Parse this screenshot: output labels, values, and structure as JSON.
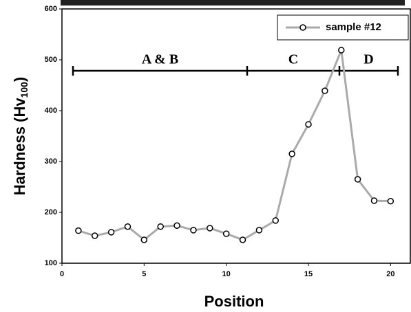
{
  "chart_data": {
    "type": "line",
    "x_label": "Position",
    "y_label": {
      "text": "Hardness (Hv",
      "sub": "100",
      "end": ")"
    },
    "x": [
      1,
      2,
      3,
      4,
      5,
      6,
      7,
      8,
      9,
      10,
      11,
      12,
      13,
      14,
      15,
      16,
      17,
      18,
      19,
      20
    ],
    "series": [
      {
        "name": "sample #12",
        "color": "#aaaaaa",
        "values": [
          164,
          154,
          161,
          172,
          146,
          172,
          174,
          165,
          169,
          158,
          146,
          165,
          184,
          315,
          373,
          439,
          519,
          265,
          223,
          222
        ]
      }
    ],
    "xlim": [
      0,
      21.2
    ],
    "xticks": [
      0,
      5,
      10,
      15,
      20
    ],
    "ylim": [
      100,
      600
    ],
    "yticks": [
      100,
      200,
      300,
      400,
      500,
      600
    ],
    "annotations": [
      "A & B",
      "C",
      "D"
    ],
    "legend": "upper right"
  }
}
